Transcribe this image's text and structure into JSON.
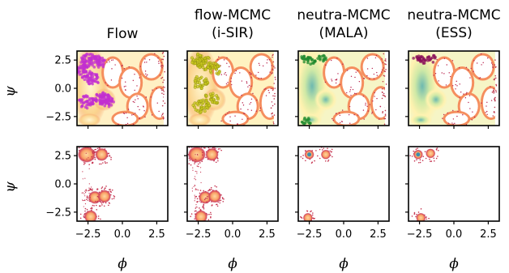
{
  "chart_data": {
    "type": "scatter",
    "panel_titles": [
      [
        "Flow"
      ],
      [
        "flow-MCMC",
        "(i-SIR)"
      ],
      [
        "neutra-MCMC",
        "(MALA)"
      ],
      [
        "neutra-MCMC",
        "(ESS)"
      ]
    ],
    "xlabel": "ϕ",
    "ylabel": "ψ",
    "xlim": [
      -3.3,
      3.3
    ],
    "ylim": [
      -3.3,
      3.3
    ],
    "xticks": [
      -2.5,
      0.0,
      2.5
    ],
    "xtick_labels": [
      "−2.5",
      "0.0",
      "2.5"
    ],
    "yticks": [
      2.5,
      0.0,
      -2.5
    ],
    "ytick_labels": [
      "2.5",
      "0.0",
      "−2.5"
    ],
    "grid": false,
    "colors": {
      "density_high": "#3288bd",
      "density_mid": "#fee08b",
      "density_low": "#f46d43",
      "density_tail": "#9e0142",
      "flow_samples": "#c12fd0",
      "isir_samples": "#c8c81a",
      "mala_samples": "#1f8a2d",
      "ess_samples": "#8a0f5a"
    },
    "rows": [
      {
        "description_key": "top",
        "panels": [
          {
            "samples": [
              {
                "x": -2.5,
                "y": 2.5
              },
              {
                "x": -1.8,
                "y": 2.3
              },
              {
                "x": -2.9,
                "y": 1.5
              },
              {
                "x": -2.2,
                "y": 0.8
              },
              {
                "x": -1.5,
                "y": -0.9
              },
              {
                "x": -2.6,
                "y": -1.2
              },
              {
                "x": -1.2,
                "y": -1.1
              }
            ]
          },
          {
            "samples": [
              {
                "x": -2.5,
                "y": 2.5
              },
              {
                "x": -2.0,
                "y": 2.2
              },
              {
                "x": -1.4,
                "y": 1.7
              },
              {
                "x": -2.4,
                "y": 0.5
              },
              {
                "x": -1.6,
                "y": -1.0
              },
              {
                "x": -2.3,
                "y": -1.6
              }
            ]
          },
          {
            "samples": [
              {
                "x": -2.8,
                "y": 2.6
              },
              {
                "x": -2.4,
                "y": 2.4
              },
              {
                "x": -1.6,
                "y": 2.6
              },
              {
                "x": -2.7,
                "y": -2.9
              }
            ]
          },
          {
            "samples": [
              {
                "x": -2.6,
                "y": 2.6
              },
              {
                "x": -2.3,
                "y": 2.5
              },
              {
                "x": -1.6,
                "y": 2.6
              }
            ]
          }
        ]
      },
      {
        "description_key": "bottom",
        "panels": [
          {
            "modes": [
              {
                "x": -2.6,
                "y": 2.6
              },
              {
                "x": -1.5,
                "y": 2.6
              },
              {
                "x": -2.0,
                "y": -1.2
              },
              {
                "x": -1.3,
                "y": -1.1
              },
              {
                "x": -2.3,
                "y": -2.9
              }
            ]
          },
          {
            "modes": [
              {
                "x": -2.6,
                "y": 2.6
              },
              {
                "x": -1.5,
                "y": 2.6
              },
              {
                "x": -2.0,
                "y": -1.2
              },
              {
                "x": -1.3,
                "y": -1.1
              },
              {
                "x": -2.3,
                "y": -2.9
              }
            ]
          },
          {
            "modes": [
              {
                "x": -2.5,
                "y": 2.6
              },
              {
                "x": -1.3,
                "y": 2.6
              },
              {
                "x": -2.6,
                "y": -3.0
              }
            ]
          },
          {
            "modes": [
              {
                "x": -2.6,
                "y": 2.6
              },
              {
                "x": -1.7,
                "y": 2.7
              },
              {
                "x": -2.4,
                "y": -3.0
              }
            ]
          }
        ]
      }
    ]
  }
}
